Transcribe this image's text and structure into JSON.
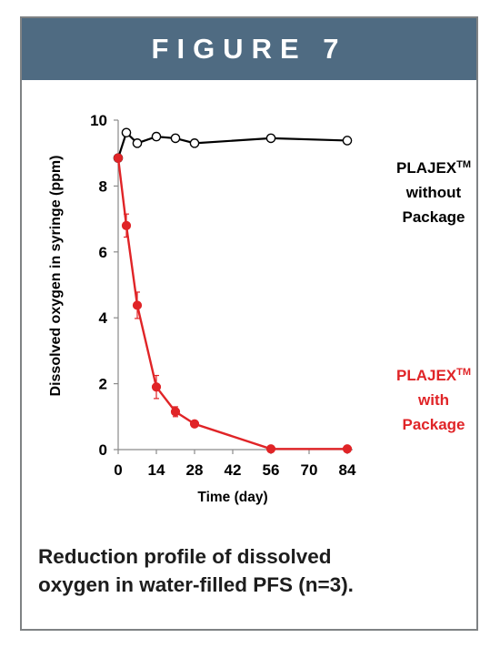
{
  "figure": {
    "banner": "FIGURE 7"
  },
  "caption": {
    "line1": "Reduction profile of dissolved",
    "line2": "oxygen in water-filled PFS (n=3)."
  },
  "chart_data": {
    "type": "line",
    "title": "",
    "xlabel": "Time (day)",
    "ylabel": "Dissolved oxygen in syringe (ppm)",
    "xlim": [
      0,
      84
    ],
    "ylim": [
      0,
      10
    ],
    "x_ticks": [
      "0",
      "14",
      "28",
      "42",
      "56",
      "70",
      "84"
    ],
    "y_ticks": [
      "0",
      "2",
      "4",
      "6",
      "8",
      "10"
    ],
    "grid": false,
    "series": [
      {
        "name_lines": [
          "PLAJEX",
          "without",
          "Package"
        ],
        "name_sup": "TM",
        "color": "#000000",
        "marker": "open-circle",
        "x": [
          0,
          3,
          7,
          14,
          21,
          28,
          56,
          84
        ],
        "y": [
          8.85,
          9.62,
          9.3,
          9.5,
          9.45,
          9.3,
          9.45,
          9.38
        ],
        "err": [
          0,
          0,
          0,
          0,
          0,
          0,
          0,
          0
        ]
      },
      {
        "name_lines": [
          "PLAJEX",
          "with",
          "Package"
        ],
        "name_sup": "TM",
        "color": "#e02427",
        "marker": "filled-circle",
        "x": [
          0,
          3,
          7,
          14,
          21,
          28,
          56,
          84
        ],
        "y": [
          8.85,
          6.8,
          4.38,
          1.9,
          1.15,
          0.78,
          0.02,
          0.02
        ],
        "err": [
          0,
          0.35,
          0.4,
          0.35,
          0.15,
          0.05,
          0,
          0
        ]
      }
    ]
  }
}
